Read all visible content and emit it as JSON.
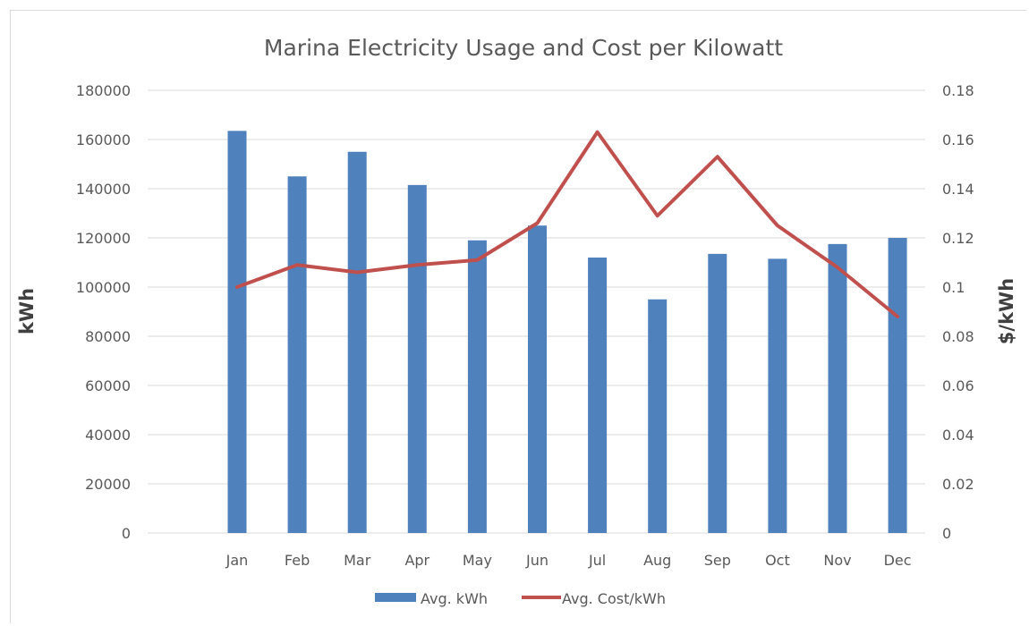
{
  "chart_data": {
    "type": "bar",
    "title": "Marina Electricity Usage and Cost per Kilowatt",
    "categories": [
      "Jan",
      "Feb",
      "Mar",
      "Apr",
      "May",
      "Jun",
      "Jul",
      "Aug",
      "Sep",
      "Oct",
      "Nov",
      "Dec"
    ],
    "series": [
      {
        "name": "Avg. kWh",
        "type": "bar",
        "axis": "left",
        "color": "#4f81bd",
        "values": [
          163500,
          145000,
          155000,
          141500,
          119000,
          125000,
          112000,
          95000,
          113500,
          111500,
          117500,
          120000
        ]
      },
      {
        "name": "Avg. Cost/kWh",
        "type": "line",
        "axis": "right",
        "color": "#c0504d",
        "values": [
          0.1,
          0.109,
          0.106,
          0.109,
          0.111,
          0.126,
          0.163,
          0.129,
          0.153,
          0.125,
          0.108,
          0.088
        ]
      }
    ],
    "ylabel": "kWh",
    "ylim": [
      0,
      180000
    ],
    "yticks": [
      "0",
      "20000",
      "40000",
      "60000",
      "80000",
      "100000",
      "120000",
      "140000",
      "160000",
      "180000"
    ],
    "y2label": "$/kWh",
    "y2lim": [
      0,
      0.18
    ],
    "y2ticks": [
      "0",
      "0.02",
      "0.04",
      "0.06",
      "0.08",
      "0.1",
      "0.12",
      "0.14",
      "0.16",
      "0.18"
    ],
    "grid": true,
    "legend": "bottom",
    "gridColor": "#d9d9d9"
  }
}
